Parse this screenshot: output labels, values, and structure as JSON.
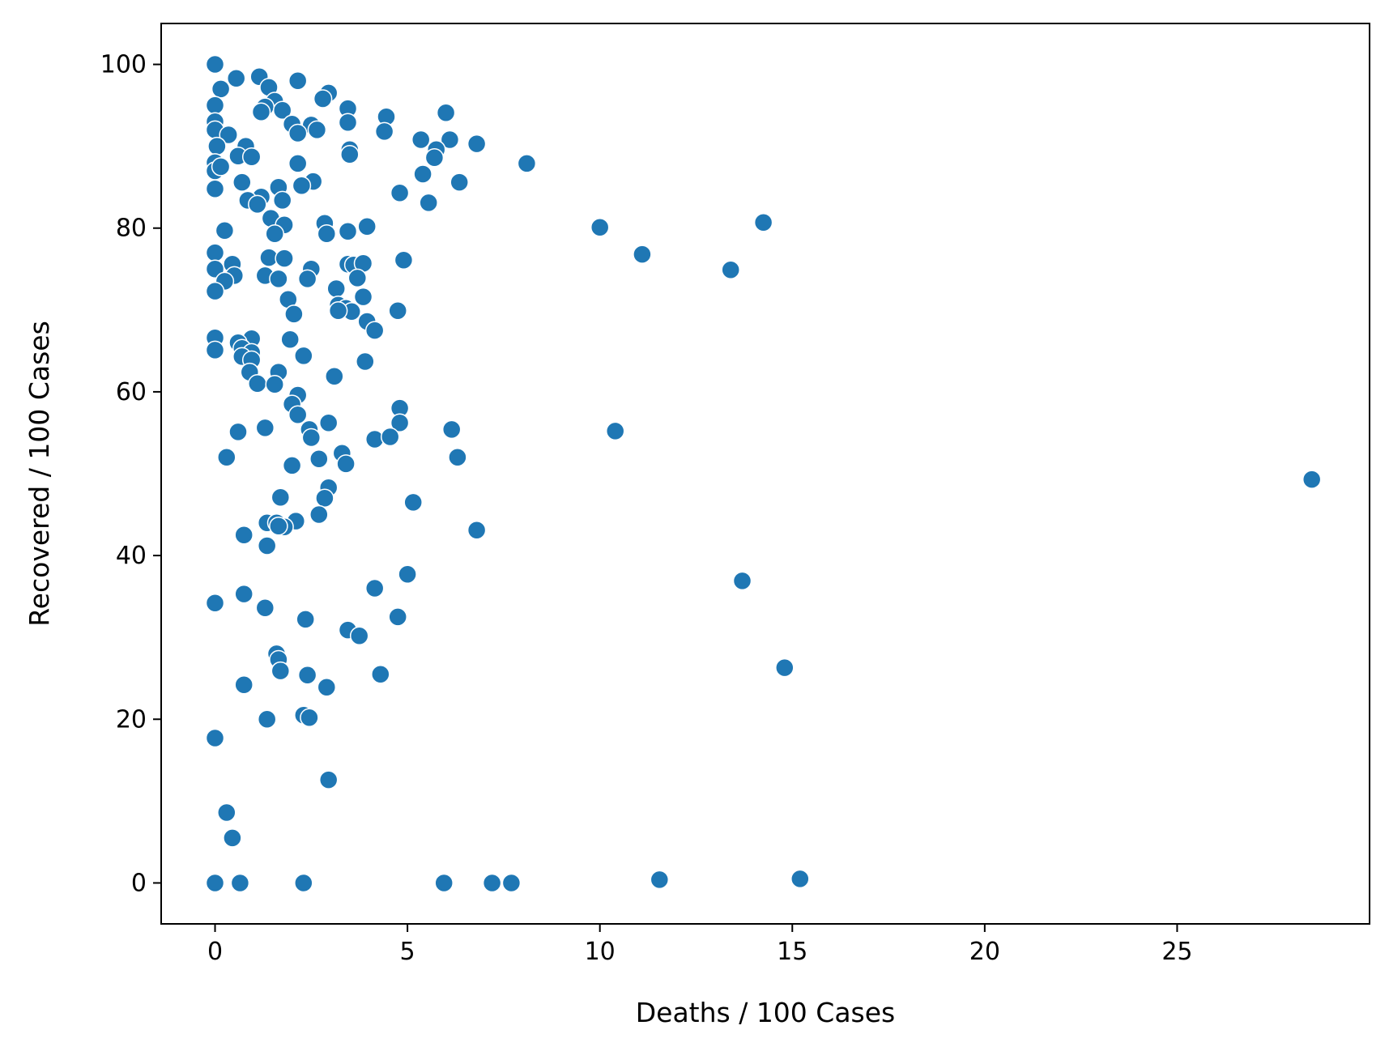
{
  "chart_data": {
    "type": "scatter",
    "title": "",
    "xlabel": "Deaths / 100 Cases",
    "ylabel": "Recovered / 100 Cases",
    "xlim": [
      -1.4,
      30
    ],
    "ylim": [
      -5,
      105
    ],
    "xticks": [
      0,
      5,
      10,
      15,
      20,
      25
    ],
    "yticks": [
      0,
      20,
      40,
      60,
      80,
      100
    ],
    "xtick_labels": [
      "0",
      "5",
      "10",
      "15",
      "20",
      "25"
    ],
    "ytick_labels": [
      "0",
      "20",
      "40",
      "60",
      "80",
      "100"
    ],
    "grid": false,
    "legend": "none",
    "point_color": "#1f77b4",
    "points": [
      [
        0,
        100
      ],
      [
        0.55,
        98.3
      ],
      [
        1.15,
        98.5
      ],
      [
        2.15,
        98
      ],
      [
        1.4,
        97.2
      ],
      [
        0.15,
        97
      ],
      [
        2.95,
        96.5
      ],
      [
        1.55,
        95.5
      ],
      [
        2.8,
        95.8
      ],
      [
        0,
        95
      ],
      [
        1.3,
        94.8
      ],
      [
        1.75,
        94.4
      ],
      [
        1.2,
        94.2
      ],
      [
        3.45,
        94.6
      ],
      [
        6,
        94.1
      ],
      [
        4.45,
        93.6
      ],
      [
        0,
        93
      ],
      [
        2,
        92.7
      ],
      [
        2.5,
        92.6
      ],
      [
        3.45,
        92.9
      ],
      [
        0,
        92
      ],
      [
        0.35,
        91.4
      ],
      [
        2.15,
        91.6
      ],
      [
        2.65,
        92
      ],
      [
        4.4,
        91.8
      ],
      [
        5.35,
        90.8
      ],
      [
        6.1,
        90.8
      ],
      [
        6.8,
        90.3
      ],
      [
        0.05,
        90
      ],
      [
        0.8,
        90
      ],
      [
        3.5,
        89.6
      ],
      [
        5.75,
        89.6
      ],
      [
        0.6,
        88.8
      ],
      [
        0.95,
        88.7
      ],
      [
        3.5,
        89
      ],
      [
        5.7,
        88.6
      ],
      [
        0,
        88
      ],
      [
        2.15,
        87.9
      ],
      [
        8.1,
        87.9
      ],
      [
        0,
        87
      ],
      [
        0.15,
        87.5
      ],
      [
        5.4,
        86.6
      ],
      [
        0.7,
        85.6
      ],
      [
        2.55,
        85.7
      ],
      [
        6.35,
        85.6
      ],
      [
        0,
        84.8
      ],
      [
        1.65,
        85
      ],
      [
        2.25,
        85.2
      ],
      [
        4.8,
        84.3
      ],
      [
        1.2,
        83.8
      ],
      [
        0.85,
        83.4
      ],
      [
        1.1,
        82.9
      ],
      [
        1.75,
        83.4
      ],
      [
        5.55,
        83.1
      ],
      [
        1.45,
        81.2
      ],
      [
        1.8,
        80.4
      ],
      [
        2.85,
        80.6
      ],
      [
        3.95,
        80.2
      ],
      [
        10,
        80.1
      ],
      [
        14.25,
        80.7
      ],
      [
        0.25,
        79.7
      ],
      [
        1.55,
        79.3
      ],
      [
        2.9,
        79.3
      ],
      [
        3.45,
        79.6
      ],
      [
        0,
        77
      ],
      [
        11.1,
        76.8
      ],
      [
        1.4,
        76.4
      ],
      [
        1.8,
        76.3
      ],
      [
        4.9,
        76.1
      ],
      [
        0.45,
        75.6
      ],
      [
        2.5,
        75
      ],
      [
        3.45,
        75.6
      ],
      [
        3.6,
        75.5
      ],
      [
        3.85,
        75.7
      ],
      [
        13.4,
        74.9
      ],
      [
        0,
        75
      ],
      [
        0.5,
        74.2
      ],
      [
        1.3,
        74.2
      ],
      [
        1.65,
        73.8
      ],
      [
        2.4,
        73.8
      ],
      [
        0.25,
        73.5
      ],
      [
        3.7,
        73.9
      ],
      [
        0,
        72.3
      ],
      [
        3.15,
        72.6
      ],
      [
        3.85,
        71.6
      ],
      [
        1.9,
        71.3
      ],
      [
        3.2,
        70.6
      ],
      [
        3.4,
        70.2
      ],
      [
        3.55,
        69.8
      ],
      [
        3.2,
        69.9
      ],
      [
        4.75,
        69.9
      ],
      [
        2.05,
        69.5
      ],
      [
        3.95,
        68.6
      ],
      [
        4.15,
        67.5
      ],
      [
        0,
        66.6
      ],
      [
        0.95,
        66.5
      ],
      [
        1.95,
        66.4
      ],
      [
        0.6,
        66
      ],
      [
        0.7,
        65.3
      ],
      [
        0,
        65.1
      ],
      [
        0.95,
        64.8
      ],
      [
        0.7,
        64.3
      ],
      [
        2.3,
        64.4
      ],
      [
        0.95,
        63.9
      ],
      [
        3.9,
        63.7
      ],
      [
        0.9,
        62.4
      ],
      [
        1.65,
        62.4
      ],
      [
        3.1,
        61.9
      ],
      [
        1.1,
        61
      ],
      [
        1.55,
        60.9
      ],
      [
        2.15,
        59.6
      ],
      [
        2,
        58.5
      ],
      [
        4.8,
        58
      ],
      [
        2.15,
        57.2
      ],
      [
        2.95,
        56.2
      ],
      [
        4.8,
        56.2
      ],
      [
        0.6,
        55.1
      ],
      [
        1.3,
        55.6
      ],
      [
        2.45,
        55.4
      ],
      [
        6.15,
        55.4
      ],
      [
        10.4,
        55.2
      ],
      [
        2.5,
        54.4
      ],
      [
        4.15,
        54.2
      ],
      [
        4.55,
        54.5
      ],
      [
        3.3,
        52.5
      ],
      [
        0.3,
        52
      ],
      [
        2.7,
        51.8
      ],
      [
        6.3,
        52
      ],
      [
        2,
        51
      ],
      [
        3.4,
        51.2
      ],
      [
        28.5,
        49.3
      ],
      [
        2.95,
        48.3
      ],
      [
        2.85,
        47
      ],
      [
        1.7,
        47.1
      ],
      [
        5.15,
        46.5
      ],
      [
        2.7,
        45
      ],
      [
        1.35,
        44
      ],
      [
        1.6,
        44
      ],
      [
        2.1,
        44.2
      ],
      [
        1.8,
        43.5
      ],
      [
        1.65,
        43.6
      ],
      [
        6.8,
        43.1
      ],
      [
        0.75,
        42.5
      ],
      [
        1.35,
        41.2
      ],
      [
        5,
        37.7
      ],
      [
        13.7,
        36.9
      ],
      [
        4.15,
        36
      ],
      [
        0.75,
        35.3
      ],
      [
        0,
        34.2
      ],
      [
        1.3,
        33.6
      ],
      [
        4.75,
        32.5
      ],
      [
        2.35,
        32.2
      ],
      [
        3.45,
        30.9
      ],
      [
        3.75,
        30.2
      ],
      [
        1.6,
        28
      ],
      [
        1.65,
        27.3
      ],
      [
        14.8,
        26.3
      ],
      [
        1.7,
        25.9
      ],
      [
        2.4,
        25.4
      ],
      [
        4.3,
        25.5
      ],
      [
        0.75,
        24.2
      ],
      [
        2.9,
        23.9
      ],
      [
        2.3,
        20.5
      ],
      [
        2.45,
        20.2
      ],
      [
        1.35,
        20
      ],
      [
        0,
        17.7
      ],
      [
        2.95,
        12.6
      ],
      [
        0.3,
        8.6
      ],
      [
        0.45,
        5.5
      ],
      [
        0,
        0
      ],
      [
        0.65,
        0
      ],
      [
        2.3,
        0
      ],
      [
        5.95,
        0
      ],
      [
        7.2,
        0
      ],
      [
        7.7,
        0
      ],
      [
        11.55,
        0.4
      ],
      [
        15.2,
        0.5
      ]
    ]
  }
}
